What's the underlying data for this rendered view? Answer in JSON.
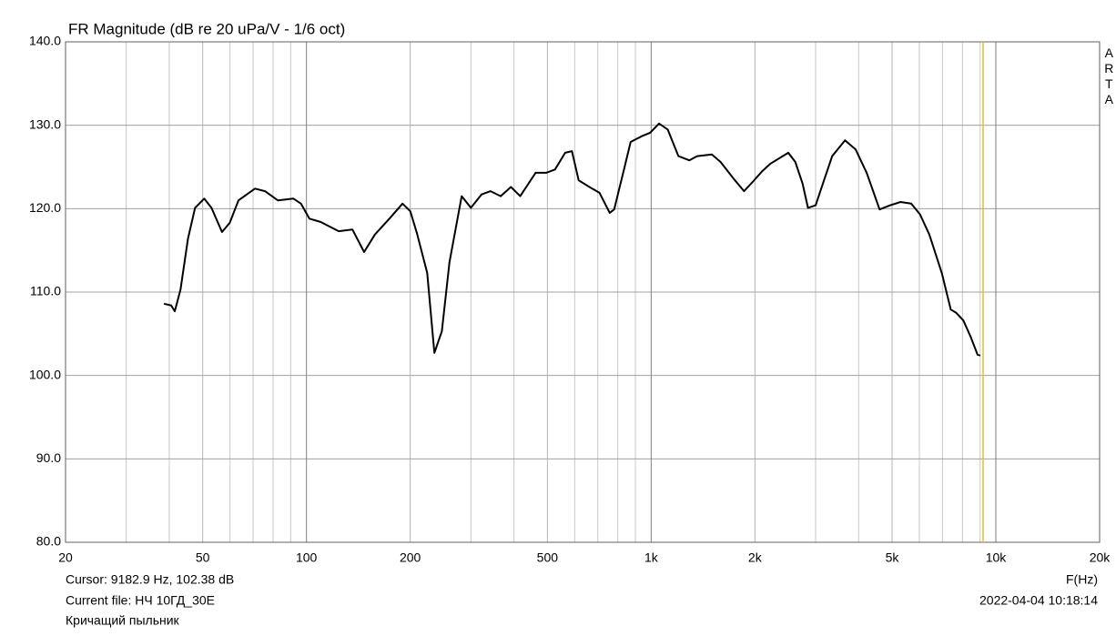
{
  "chart_data": {
    "type": "line",
    "title": "FR Magnitude (dB re 20 uPa/V - 1/6 oct)",
    "x_label": "F(Hz)",
    "brand": "ARTA",
    "log_x": true,
    "grid": true,
    "xlim": [
      20,
      20000
    ],
    "ylim": [
      80,
      140
    ],
    "xticks": [
      20,
      50,
      100,
      200,
      500,
      {
        "value": 1000,
        "label": "1k"
      },
      {
        "value": 2000,
        "label": "2k"
      },
      {
        "value": 5000,
        "label": "5k"
      },
      {
        "value": 10000,
        "label": "10k"
      },
      {
        "value": 20000,
        "label": "20k"
      }
    ],
    "x_minor_grid": [
      30,
      40,
      60,
      70,
      80,
      90,
      300,
      400,
      600,
      700,
      800,
      900,
      3000,
      4000,
      6000,
      7000,
      8000,
      9000
    ],
    "yticks": [
      {
        "value": 80,
        "label": "80.0"
      },
      {
        "value": 90,
        "label": "90.0"
      },
      {
        "value": 100,
        "label": "100.0"
      },
      {
        "value": 110,
        "label": "110.0"
      },
      {
        "value": 120,
        "label": "120.0"
      },
      {
        "value": 130,
        "label": "130.0"
      },
      {
        "value": 140,
        "label": "140.0"
      }
    ],
    "cursor": {
      "x": 9182.9,
      "color": "#e0c040",
      "label": "Cursor: 9182.9 Hz, 102.38 dB"
    },
    "file_label": "Current file: НЧ 10ГД_30Е",
    "note": "Кричащий пыльник",
    "timestamp": "2022-04-04  10:18:14",
    "series": [
      {
        "color": "#000000",
        "x": [
          38.6,
          40.5,
          41.5,
          43.1,
          45.3,
          47.5,
          50.5,
          53.0,
          56.9,
          59.9,
          63.5,
          70.9,
          75.8,
          82.6,
          91.7,
          96.4,
          102,
          110,
          124,
          136,
          147,
          158,
          174,
          190,
          200,
          209,
          224,
          235,
          247,
          260,
          282,
          300,
          322,
          342,
          366,
          392,
          417,
          462,
          496,
          526,
          563,
          589,
          616,
          662,
          708,
          758,
          781,
          834,
          872,
          940,
          993,
          1054,
          1117,
          1200,
          1290,
          1360,
          1500,
          1590,
          1750,
          1860,
          1970,
          2100,
          2220,
          2500,
          2620,
          2750,
          2850,
          3000,
          3150,
          3350,
          3650,
          3920,
          4220,
          4600,
          4930,
          5290,
          5680,
          6030,
          6410,
          6970,
          7400,
          7680,
          8050,
          8440,
          8850,
          9010
        ],
        "values": [
          108.6,
          108.4,
          107.7,
          110.3,
          116.4,
          120.1,
          121.2,
          120.1,
          117.2,
          118.3,
          121.0,
          122.4,
          122.1,
          121.0,
          121.2,
          120.6,
          118.8,
          118.4,
          117.3,
          117.5,
          114.8,
          116.9,
          118.8,
          120.6,
          119.7,
          117.1,
          112.3,
          102.7,
          105.3,
          113.6,
          121.5,
          120.1,
          121.7,
          122.1,
          121.5,
          122.6,
          121.5,
          124.3,
          124.3,
          124.7,
          126.7,
          126.9,
          123.4,
          122.6,
          121.9,
          119.5,
          119.9,
          124.7,
          128.0,
          128.7,
          129.1,
          130.2,
          129.5,
          126.3,
          125.8,
          126.3,
          126.5,
          125.6,
          123.4,
          122.1,
          123.2,
          124.5,
          125.4,
          126.7,
          125.6,
          123.0,
          120.1,
          120.4,
          123.0,
          126.3,
          128.2,
          127.1,
          124.3,
          119.9,
          120.4,
          120.8,
          120.6,
          119.3,
          116.9,
          112.3,
          107.9,
          107.5,
          106.6,
          104.7,
          102.5,
          102.4
        ]
      }
    ]
  }
}
